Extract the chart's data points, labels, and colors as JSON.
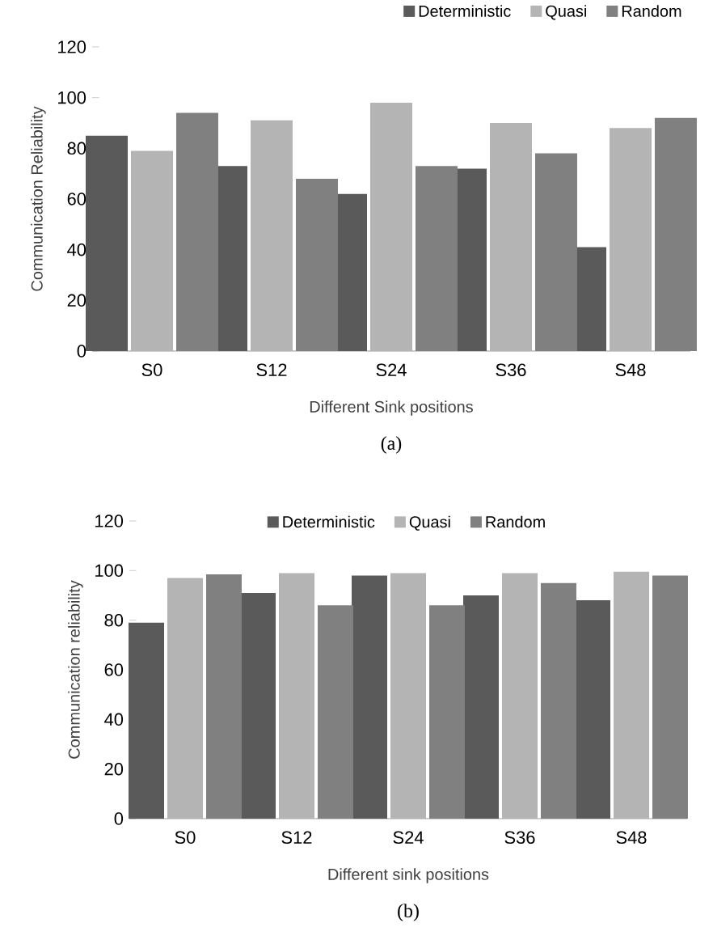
{
  "chart_data": [
    {
      "type": "bar",
      "ylabel": "Communication Reliability",
      "xlabel": "Different Sink positions",
      "categories": [
        "S0",
        "S12",
        "S24",
        "S36",
        "S48"
      ],
      "series": [
        {
          "name": "Deterministic",
          "color": "#5a5a5a",
          "values": [
            85,
            73,
            62,
            72,
            41
          ]
        },
        {
          "name": "Quasi",
          "color": "#b4b4b4",
          "values": [
            79,
            91,
            98,
            90,
            88
          ]
        },
        {
          "name": "Random",
          "color": "#808080",
          "values": [
            94,
            68,
            73,
            78,
            92
          ]
        }
      ],
      "ylim": [
        0,
        120
      ],
      "yticks": [
        0,
        20,
        40,
        60,
        80,
        100,
        120
      ],
      "legend": "top right",
      "annotations": [
        "(a)"
      ]
    },
    {
      "type": "bar",
      "ylabel": "Communication reliability",
      "xlabel": "Different sink positions",
      "categories": [
        "S0",
        "S12",
        "S24",
        "S36",
        "S48"
      ],
      "series": [
        {
          "name": "Deterministic",
          "color": "#5a5a5a",
          "values": [
            79,
            91,
            98,
            90,
            88
          ]
        },
        {
          "name": "Quasi",
          "color": "#b4b4b4",
          "values": [
            97,
            99,
            99,
            99,
            99.5
          ]
        },
        {
          "name": "Random",
          "color": "#808080",
          "values": [
            98.5,
            86,
            86,
            95,
            98
          ]
        }
      ],
      "ylim": [
        0,
        120
      ],
      "yticks": [
        0,
        20,
        40,
        60,
        80,
        100,
        120
      ],
      "legend": "top",
      "annotations": [
        "(b)"
      ]
    }
  ]
}
